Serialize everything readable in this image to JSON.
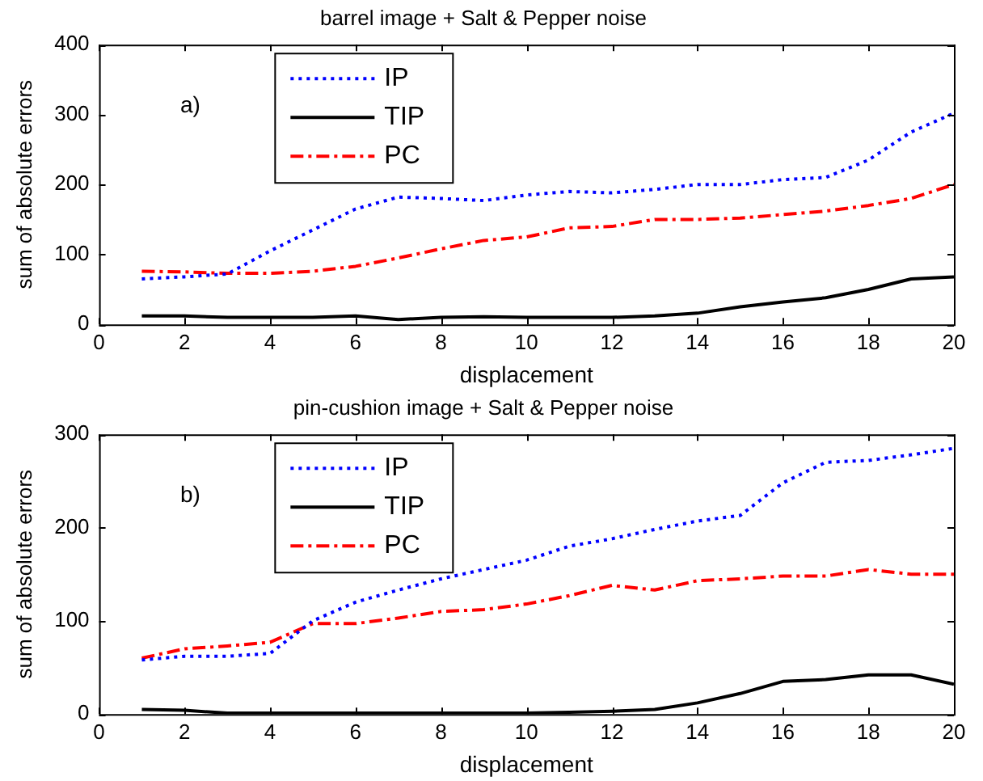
{
  "chart_data": [
    {
      "type": "line",
      "title": "barrel image + Salt & Pepper noise",
      "xlabel": "displacement",
      "ylabel": "sum of absolute errors",
      "annotations": [
        "a)"
      ],
      "x": [
        1,
        2,
        3,
        4,
        5,
        6,
        7,
        8,
        9,
        10,
        11,
        12,
        13,
        14,
        15,
        16,
        17,
        18,
        19,
        20
      ],
      "xlim": [
        0,
        20
      ],
      "xticks": [
        0,
        2,
        4,
        6,
        8,
        10,
        12,
        14,
        16,
        18,
        20
      ],
      "ylim": [
        0,
        400
      ],
      "yticks": [
        0,
        100,
        200,
        300,
        400
      ],
      "legend": "top left",
      "marker": "none",
      "series": [
        {
          "name": "IP",
          "color": "#0000ff",
          "line_style": "dotted",
          "values": [
            65,
            68,
            72,
            105,
            135,
            165,
            182,
            180,
            177,
            185,
            190,
            188,
            193,
            200,
            200,
            207,
            210,
            235,
            275,
            302
          ]
        },
        {
          "name": "TIP",
          "color": "#000000",
          "line_style": "solid",
          "values": [
            12,
            12,
            10,
            10,
            10,
            12,
            7,
            10,
            11,
            10,
            10,
            10,
            12,
            16,
            25,
            32,
            38,
            50,
            65,
            68
          ]
        },
        {
          "name": "PC",
          "color": "#ff0000",
          "line_style": "dashed",
          "values": [
            76,
            75,
            73,
            73,
            76,
            83,
            95,
            108,
            120,
            125,
            138,
            140,
            150,
            150,
            152,
            157,
            162,
            170,
            180,
            200
          ]
        }
      ]
    },
    {
      "type": "line",
      "title": "pin-cushion image + Salt & Pepper noise",
      "xlabel": "displacement",
      "ylabel": "sum of absolute errors",
      "annotations": [
        "b)"
      ],
      "x": [
        1,
        2,
        3,
        4,
        5,
        6,
        7,
        8,
        9,
        10,
        11,
        12,
        13,
        14,
        15,
        16,
        17,
        18,
        19,
        20
      ],
      "xlim": [
        0,
        20
      ],
      "xticks": [
        0,
        2,
        4,
        6,
        8,
        10,
        12,
        14,
        16,
        18,
        20
      ],
      "ylim": [
        0,
        300
      ],
      "yticks": [
        0,
        100,
        200,
        300
      ],
      "legend": "top left",
      "marker": "none",
      "series": [
        {
          "name": "IP",
          "color": "#0000ff",
          "line_style": "dotted",
          "values": [
            58,
            62,
            62,
            65,
            100,
            120,
            133,
            145,
            155,
            165,
            180,
            188,
            198,
            207,
            213,
            248,
            270,
            272,
            278,
            285
          ]
        },
        {
          "name": "TIP",
          "color": "#000000",
          "line_style": "solid",
          "values": [
            5,
            4,
            1,
            1,
            1,
            1,
            1,
            1,
            1,
            1,
            2,
            3,
            5,
            12,
            22,
            35,
            37,
            42,
            42,
            32
          ]
        },
        {
          "name": "PC",
          "color": "#ff0000",
          "line_style": "dashed",
          "values": [
            60,
            70,
            73,
            77,
            97,
            97,
            103,
            110,
            112,
            118,
            127,
            138,
            133,
            143,
            145,
            148,
            148,
            155,
            150,
            150
          ]
        }
      ]
    }
  ]
}
